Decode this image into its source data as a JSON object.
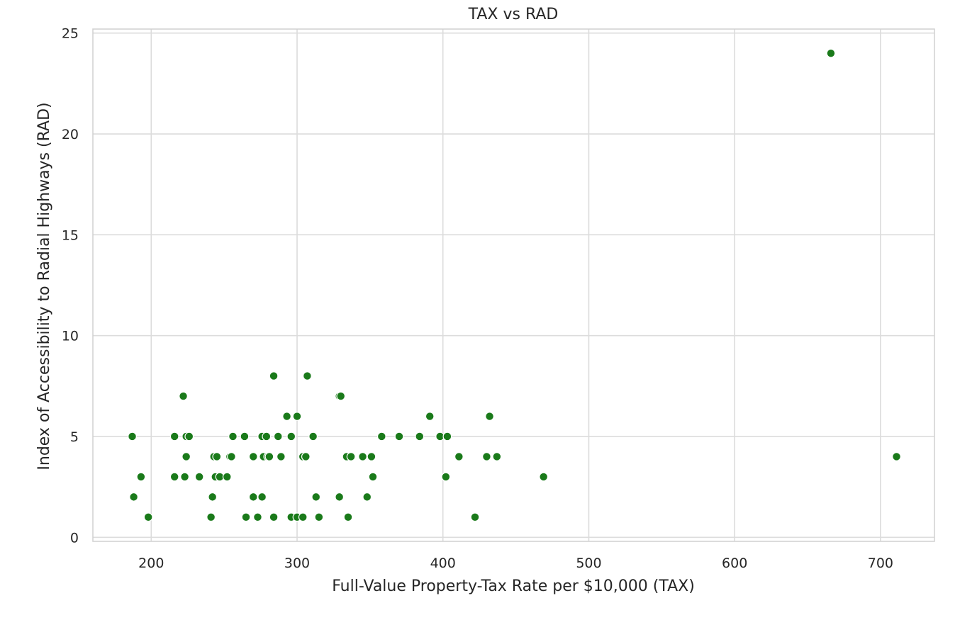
{
  "chart_data": {
    "type": "scatter",
    "title": "TAX vs RAD",
    "xlabel": "Full-Value Property-Tax Rate per $10,000 (TAX)",
    "ylabel": "Index of Accessibility to Radial Highways (RAD)",
    "xlim": [
      160,
      737
    ],
    "ylim": [
      -0.2,
      25.2
    ],
    "xticks": [
      200,
      300,
      400,
      500,
      600,
      700
    ],
    "yticks": [
      0,
      5,
      10,
      15,
      20,
      25
    ],
    "xtick_labels": [
      "200",
      "300",
      "400",
      "500",
      "600",
      "700"
    ],
    "ytick_labels": [
      "0",
      "5",
      "10",
      "15",
      "20",
      "25"
    ],
    "grid": true,
    "legend": "none",
    "point_color": "#1a7a1a",
    "points": [
      {
        "x": 187,
        "y": 5
      },
      {
        "x": 188,
        "y": 2
      },
      {
        "x": 193,
        "y": 3
      },
      {
        "x": 198,
        "y": 1
      },
      {
        "x": 216,
        "y": 5
      },
      {
        "x": 216,
        "y": 3
      },
      {
        "x": 222,
        "y": 7
      },
      {
        "x": 223,
        "y": 3
      },
      {
        "x": 224,
        "y": 5
      },
      {
        "x": 224,
        "y": 4
      },
      {
        "x": 226,
        "y": 5
      },
      {
        "x": 233,
        "y": 3
      },
      {
        "x": 241,
        "y": 1
      },
      {
        "x": 242,
        "y": 2
      },
      {
        "x": 243,
        "y": 4
      },
      {
        "x": 244,
        "y": 3
      },
      {
        "x": 245,
        "y": 4
      },
      {
        "x": 247,
        "y": 3
      },
      {
        "x": 252,
        "y": 3
      },
      {
        "x": 254,
        "y": 4
      },
      {
        "x": 255,
        "y": 4
      },
      {
        "x": 256,
        "y": 5
      },
      {
        "x": 264,
        "y": 5
      },
      {
        "x": 265,
        "y": 1
      },
      {
        "x": 270,
        "y": 4
      },
      {
        "x": 270,
        "y": 2
      },
      {
        "x": 273,
        "y": 1
      },
      {
        "x": 276,
        "y": 5
      },
      {
        "x": 276,
        "y": 2
      },
      {
        "x": 277,
        "y": 4
      },
      {
        "x": 279,
        "y": 5
      },
      {
        "x": 280,
        "y": 4
      },
      {
        "x": 281,
        "y": 4
      },
      {
        "x": 284,
        "y": 8
      },
      {
        "x": 284,
        "y": 1
      },
      {
        "x": 287,
        "y": 5
      },
      {
        "x": 289,
        "y": 4
      },
      {
        "x": 293,
        "y": 6
      },
      {
        "x": 296,
        "y": 5
      },
      {
        "x": 296,
        "y": 1
      },
      {
        "x": 300,
        "y": 6
      },
      {
        "x": 300,
        "y": 1
      },
      {
        "x": 304,
        "y": 4
      },
      {
        "x": 304,
        "y": 1
      },
      {
        "x": 306,
        "y": 4
      },
      {
        "x": 307,
        "y": 8
      },
      {
        "x": 311,
        "y": 5
      },
      {
        "x": 313,
        "y": 2
      },
      {
        "x": 315,
        "y": 1
      },
      {
        "x": 329,
        "y": 7
      },
      {
        "x": 329,
        "y": 2
      },
      {
        "x": 330,
        "y": 7
      },
      {
        "x": 334,
        "y": 4
      },
      {
        "x": 335,
        "y": 1
      },
      {
        "x": 337,
        "y": 4
      },
      {
        "x": 345,
        "y": 4
      },
      {
        "x": 348,
        "y": 2
      },
      {
        "x": 351,
        "y": 4
      },
      {
        "x": 352,
        "y": 3
      },
      {
        "x": 358,
        "y": 5
      },
      {
        "x": 370,
        "y": 5
      },
      {
        "x": 384,
        "y": 5
      },
      {
        "x": 391,
        "y": 6
      },
      {
        "x": 398,
        "y": 5
      },
      {
        "x": 402,
        "y": 3
      },
      {
        "x": 403,
        "y": 5
      },
      {
        "x": 411,
        "y": 4
      },
      {
        "x": 422,
        "y": 1
      },
      {
        "x": 430,
        "y": 4
      },
      {
        "x": 432,
        "y": 6
      },
      {
        "x": 437,
        "y": 4
      },
      {
        "x": 469,
        "y": 3
      },
      {
        "x": 666,
        "y": 24
      },
      {
        "x": 711,
        "y": 4
      }
    ]
  }
}
